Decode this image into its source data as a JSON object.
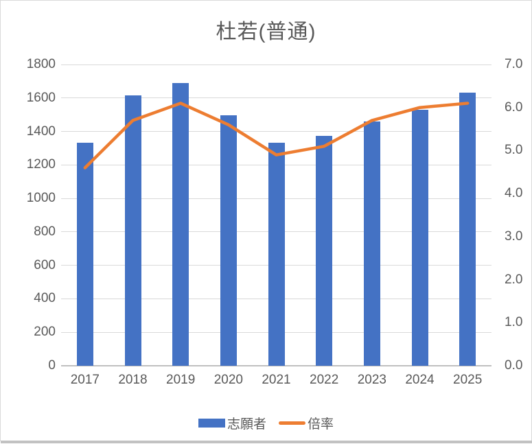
{
  "chart_data": {
    "type": "combo-bar-line",
    "title": "杜若(普通)",
    "categories": [
      "2017",
      "2018",
      "2019",
      "2020",
      "2021",
      "2022",
      "2023",
      "2024",
      "2025"
    ],
    "series": [
      {
        "name": "志願者",
        "chart_type": "bar",
        "axis": "left",
        "color": "#4472C4",
        "values": [
          1333,
          1615,
          1690,
          1495,
          1333,
          1375,
          1460,
          1530,
          1630
        ]
      },
      {
        "name": "倍率",
        "chart_type": "line",
        "axis": "right",
        "color": "#ED7D31",
        "values": [
          4.6,
          5.7,
          6.1,
          5.6,
          4.9,
          5.1,
          5.7,
          6.0,
          6.1
        ]
      }
    ],
    "left_axis": {
      "min": 0,
      "max": 1800,
      "step": 200,
      "tick_labels": [
        "0",
        "200",
        "400",
        "600",
        "800",
        "1000",
        "1200",
        "1400",
        "1600",
        "1800"
      ]
    },
    "right_axis": {
      "min": 0,
      "max": 7,
      "step": 1,
      "tick_labels": [
        "0.0",
        "1.0",
        "2.0",
        "3.0",
        "4.0",
        "5.0",
        "6.0",
        "7.0"
      ]
    },
    "grid": true,
    "legend_position": "bottom",
    "text_color": "#595959",
    "gridline_color": "#D9D9D9",
    "axisline_color": "#BFBFBF"
  },
  "legend": {
    "items": [
      {
        "label": "志願者",
        "swatch": "bar",
        "color": "#4472C4"
      },
      {
        "label": "倍率",
        "swatch": "line",
        "color": "#ED7D31"
      }
    ]
  }
}
